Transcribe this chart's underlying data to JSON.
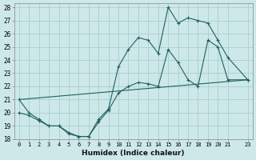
{
  "xlabel": "Humidex (Indice chaleur)",
  "background_color": "#cde8e8",
  "grid_color": "#aacece",
  "line_color": "#206060",
  "xlim": [
    -0.5,
    23.5
  ],
  "ylim": [
    18,
    28.3
  ],
  "xticks": [
    0,
    1,
    2,
    3,
    4,
    5,
    6,
    7,
    8,
    9,
    10,
    11,
    12,
    13,
    14,
    15,
    16,
    17,
    18,
    19,
    20,
    21,
    23
  ],
  "yticks": [
    18,
    19,
    20,
    21,
    22,
    23,
    24,
    25,
    26,
    27,
    28
  ],
  "line1_x": [
    0,
    1,
    2,
    3,
    4,
    5,
    6,
    7,
    8,
    9,
    10,
    11,
    12,
    13,
    14,
    15,
    16,
    17,
    18,
    19,
    20,
    21,
    23
  ],
  "line1_y": [
    21.0,
    20.0,
    19.5,
    19.0,
    19.0,
    18.5,
    18.2,
    18.2,
    19.5,
    20.3,
    23.5,
    24.8,
    25.7,
    25.5,
    24.5,
    28.0,
    26.8,
    27.2,
    27.0,
    26.8,
    25.5,
    24.2,
    22.5
  ],
  "line2_x": [
    0,
    1,
    2,
    3,
    4,
    5,
    6,
    7,
    8,
    9,
    10,
    11,
    12,
    13,
    14,
    15,
    16,
    17,
    18,
    19,
    20,
    21,
    23
  ],
  "line2_y": [
    20.0,
    19.8,
    19.4,
    19.0,
    19.0,
    18.4,
    18.2,
    18.2,
    19.3,
    20.2,
    21.5,
    22.0,
    22.3,
    22.2,
    22.0,
    24.8,
    23.8,
    22.5,
    22.0,
    25.5,
    25.0,
    22.5,
    22.5
  ],
  "line3_x": [
    0,
    23
  ],
  "line3_y": [
    21.0,
    22.5
  ]
}
